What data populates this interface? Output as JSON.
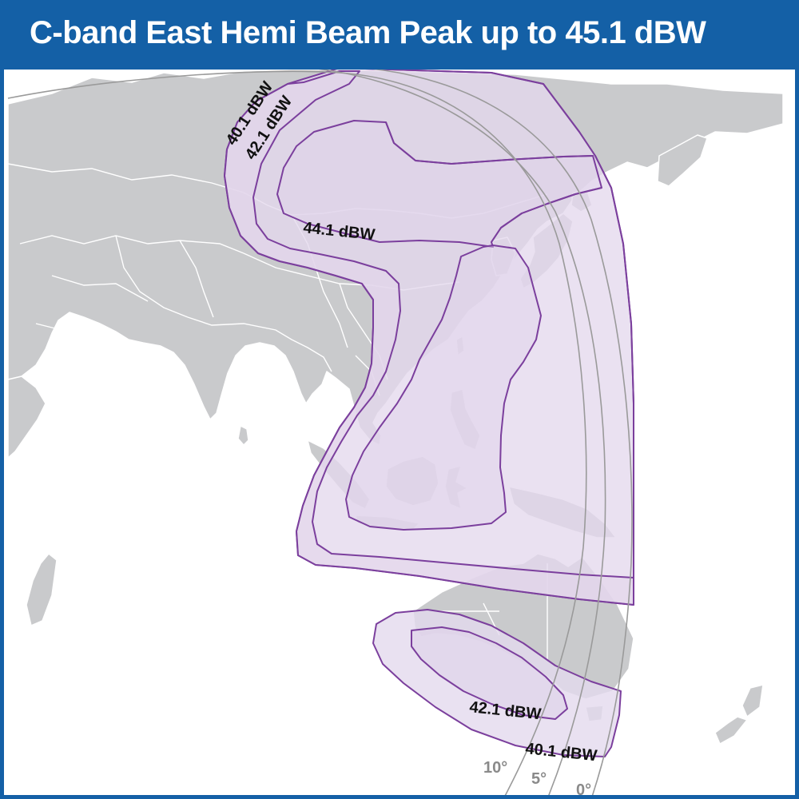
{
  "title": "C-band East Hemi Beam Peak up to 45.1 dBW",
  "colors": {
    "header": "#1460a6",
    "land": "#c9cacc",
    "borders": "#ffffff",
    "coverage_fill": "#e6dcee",
    "contour_line": "#7b3f9d",
    "elevation_arc": "#9a9a9a"
  },
  "contours": {
    "north_outer": "40.1 dBW",
    "north_middle": "42.1 dBW",
    "north_inner": "44.1 dBW",
    "south_middle": "42.1 dBW",
    "south_outer": "40.1 dBW"
  },
  "elevation_angles": {
    "ten": "10°",
    "five": "5°",
    "zero": "0°"
  }
}
